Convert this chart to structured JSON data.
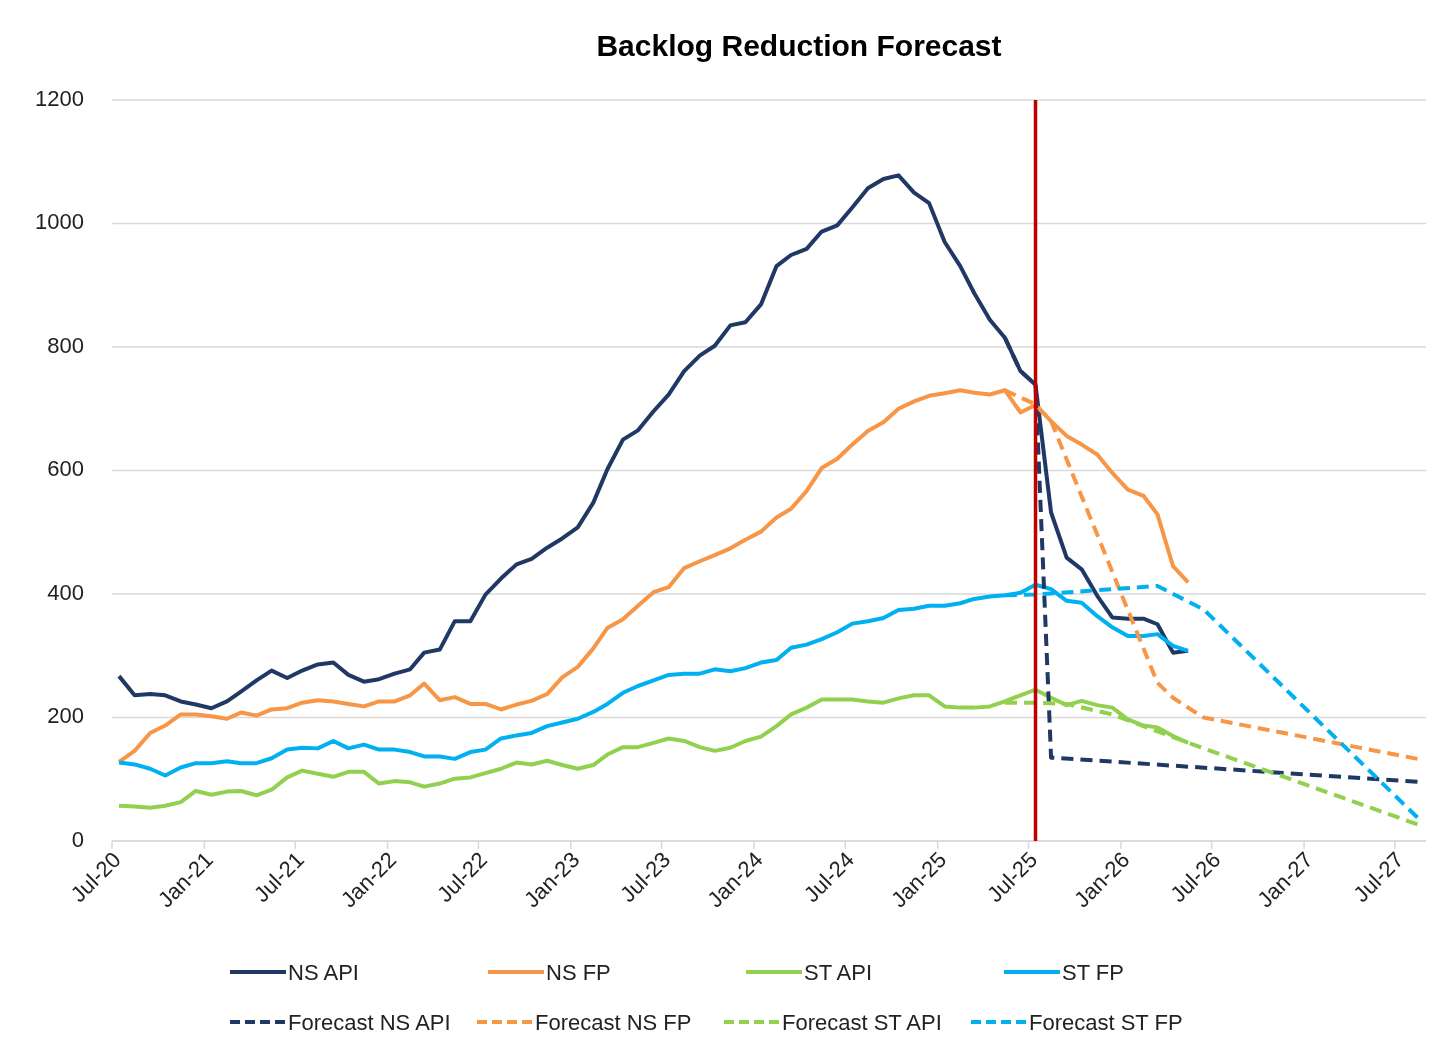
{
  "chart_data": {
    "type": "line",
    "title": "Backlog Reduction Forecast",
    "x": [
      "2020-07-15",
      "2020-08-15",
      "2020-09-15",
      "2020-10-15",
      "2020-11-15",
      "2020-12-15",
      "2021-01-15",
      "2021-02-15",
      "2021-03-15",
      "2021-04-15",
      "2021-05-15",
      "2021-06-15",
      "2021-07-15",
      "2021-08-15",
      "2021-09-15",
      "2021-10-15",
      "2021-11-15",
      "2021-12-15",
      "2022-01-15",
      "2022-02-15",
      "2022-03-15",
      "2022-04-15",
      "2022-05-15",
      "2022-06-15",
      "2022-07-15",
      "2022-08-15",
      "2022-09-15",
      "2022-10-15",
      "2022-11-15",
      "2022-12-15",
      "2023-01-15",
      "2023-02-15",
      "2023-03-15",
      "2023-04-15",
      "2023-05-15",
      "2023-06-15",
      "2023-07-15",
      "2023-08-15",
      "2023-09-15",
      "2023-10-15",
      "2023-11-15",
      "2023-12-15",
      "2024-01-15",
      "2024-02-15",
      "2024-03-15",
      "2024-04-15",
      "2024-05-15",
      "2024-06-15",
      "2024-07-15",
      "2024-08-15",
      "2024-09-15",
      "2024-10-15",
      "2024-11-15",
      "2024-12-15",
      "2025-01-15",
      "2025-02-15",
      "2025-03-15",
      "2025-04-15",
      "2025-05-15",
      "2025-06-15",
      "2025-07-15",
      "2025-08-15",
      "2025-09-15",
      "2025-10-15",
      "2025-11-15",
      "2025-12-15",
      "2026-01-15",
      "2026-02-15",
      "2026-03-15",
      "2026-04-15",
      "2026-05-15"
    ],
    "series": [
      {
        "name": "NS API",
        "color": "#203864",
        "values": [
          267,
          236,
          238,
          236,
          226,
          221,
          215,
          226,
          242,
          260,
          276,
          264,
          276,
          286,
          289,
          269,
          258,
          262,
          271,
          278,
          305,
          310,
          356,
          356,
          399,
          425,
          448,
          457,
          475,
          490,
          508,
          548,
          602,
          650,
          665,
          696,
          723,
          761,
          786,
          802,
          835,
          840,
          869,
          931,
          949,
          959,
          987,
          997,
          1026,
          1057,
          1072,
          1078,
          1050,
          1033,
          970,
          931,
          887,
          844,
          815,
          761,
          739,
          532,
          459,
          440,
          397,
          362,
          360,
          360,
          351,
          305,
          308
        ]
      },
      {
        "name": "NS FP",
        "color": "#f79646",
        "values": [
          128,
          146,
          175,
          187,
          205,
          205,
          202,
          198,
          208,
          203,
          213,
          215,
          224,
          228,
          226,
          222,
          218,
          226,
          226,
          236,
          255,
          228,
          233,
          222,
          222,
          213,
          221,
          227,
          238,
          265,
          282,
          312,
          345,
          359,
          381,
          403,
          411,
          442,
          453,
          463,
          474,
          488,
          501,
          524,
          538,
          567,
          604,
          619,
          642,
          664,
          678,
          700,
          712,
          721,
          725,
          730,
          726,
          723,
          730,
          694,
          706,
          680,
          656,
          642,
          626,
          596,
          569,
          559,
          529,
          445,
          419
        ]
      },
      {
        "name": "ST API",
        "color": "#92d050",
        "values": [
          57,
          56,
          54,
          57,
          63,
          81,
          75,
          80,
          81,
          74,
          83,
          103,
          114,
          109,
          104,
          112,
          112,
          93,
          97,
          95,
          88,
          93,
          101,
          103,
          110,
          117,
          127,
          124,
          130,
          123,
          117,
          123,
          140,
          152,
          152,
          159,
          166,
          162,
          152,
          146,
          151,
          162,
          169,
          186,
          205,
          216,
          229,
          229,
          229,
          226,
          224,
          231,
          236,
          236,
          218,
          216,
          216,
          218,
          226,
          236,
          245,
          232,
          220,
          227,
          220,
          216,
          197,
          187,
          184,
          170,
          159
        ]
      },
      {
        "name": "ST FP",
        "color": "#00b0f0",
        "values": [
          127,
          124,
          117,
          106,
          119,
          126,
          126,
          129,
          126,
          126,
          134,
          148,
          151,
          150,
          162,
          150,
          156,
          148,
          148,
          144,
          137,
          137,
          133,
          144,
          148,
          166,
          171,
          175,
          186,
          192,
          198,
          209,
          222,
          240,
          251,
          260,
          269,
          271,
          271,
          278,
          275,
          280,
          289,
          293,
          313,
          318,
          327,
          338,
          352,
          356,
          361,
          374,
          376,
          381,
          381,
          385,
          392,
          396,
          398,
          402,
          415,
          408,
          389,
          386,
          364,
          346,
          332,
          332,
          335,
          316,
          308
        ]
      },
      {
        "name": "Forecast NS API",
        "color": "#203864",
        "line_style": "dashed",
        "x": [
          "2025-05-15",
          "2025-06-15",
          "2025-07-15",
          "2025-08-15",
          "2027-08-15"
        ],
        "values": [
          815,
          761,
          739,
          135,
          96
        ]
      },
      {
        "name": "Forecast NS FP",
        "color": "#f79646",
        "line_style": "dashed",
        "x": [
          "2025-05-15",
          "2025-07-15",
          "2025-08-15",
          "2026-03-15",
          "2026-04-15",
          "2026-05-15",
          "2026-06-15",
          "2027-08-15"
        ],
        "values": [
          730,
          707,
          680,
          256,
          232,
          216,
          200,
          133
        ]
      },
      {
        "name": "Forecast ST API",
        "color": "#92d050",
        "line_style": "dashed",
        "x": [
          "2025-05-15",
          "2025-07-15",
          "2025-09-15",
          "2025-12-15",
          "2026-05-15",
          "2027-08-15"
        ],
        "values": [
          224,
          224,
          222,
          205,
          159,
          27
        ]
      },
      {
        "name": "Forecast ST FP",
        "color": "#00b0f0",
        "line_style": "dashed",
        "x": [
          "2025-05-15",
          "2025-07-15",
          "2026-03-15",
          "2026-06-15",
          "2027-08-15"
        ],
        "values": [
          398,
          399,
          413,
          375,
          38
        ]
      }
    ],
    "xlim": [
      "2020-07",
      "2027-09"
    ],
    "xticks": [
      {
        "value": "2020-07",
        "label": "Jul-20"
      },
      {
        "value": "2021-01",
        "label": "Jan-21"
      },
      {
        "value": "2021-07",
        "label": "Jul-21"
      },
      {
        "value": "2022-01",
        "label": "Jan-22"
      },
      {
        "value": "2022-07",
        "label": "Jul-22"
      },
      {
        "value": "2023-01",
        "label": "Jan-23"
      },
      {
        "value": "2023-07",
        "label": "Jul-23"
      },
      {
        "value": "2024-01",
        "label": "Jan-24"
      },
      {
        "value": "2024-07",
        "label": "Jul-24"
      },
      {
        "value": "2025-01",
        "label": "Jan-25"
      },
      {
        "value": "2025-07",
        "label": "Jul-25"
      },
      {
        "value": "2026-01",
        "label": "Jan-26"
      },
      {
        "value": "2026-07",
        "label": "Jul-26"
      },
      {
        "value": "2027-01",
        "label": "Jan-27"
      },
      {
        "value": "2027-07",
        "label": "Jul-27"
      }
    ],
    "ylim": [
      0,
      1200
    ],
    "yticks": [
      0,
      200,
      400,
      600,
      800,
      1000,
      1200
    ],
    "ref_lines": [
      {
        "axis": "x",
        "value": "2025-07-15",
        "color": "#c00000"
      }
    ],
    "grid": "y",
    "legend": "bottom"
  }
}
